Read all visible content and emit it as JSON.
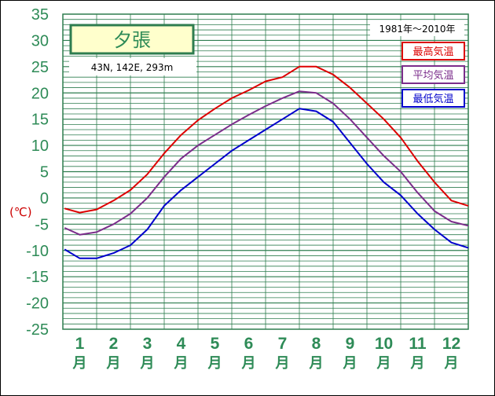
{
  "chart_data": {
    "type": "line",
    "title": "夕張",
    "location": "43N, 142E, 293m",
    "period": "1981年～2010年",
    "ylabel": "(℃)",
    "ylim": [
      -25,
      35
    ],
    "yticks": [
      "35",
      "30",
      "25",
      "20",
      "15",
      "10",
      "5",
      "0",
      "-5",
      "-10",
      "-15",
      "-20",
      "-25"
    ],
    "xlim": [
      0.5,
      12.5
    ],
    "months": [
      {
        "num": "1",
        "unit": "月"
      },
      {
        "num": "2",
        "unit": "月"
      },
      {
        "num": "3",
        "unit": "月"
      },
      {
        "num": "4",
        "unit": "月"
      },
      {
        "num": "5",
        "unit": "月"
      },
      {
        "num": "6",
        "unit": "月"
      },
      {
        "num": "7",
        "unit": "月"
      },
      {
        "num": "8",
        "unit": "月"
      },
      {
        "num": "9",
        "unit": "月"
      },
      {
        "num": "10",
        "unit": "月"
      },
      {
        "num": "11",
        "unit": "月"
      },
      {
        "num": "12",
        "unit": "月"
      }
    ],
    "grid": true,
    "legend_position": "top-right",
    "series": [
      {
        "name": "最高気温",
        "color": "#dd0000",
        "x": [
          0.55,
          1.0,
          1.5,
          2.0,
          2.5,
          3.0,
          3.5,
          4.0,
          4.5,
          5.0,
          5.5,
          6.0,
          6.5,
          7.0,
          7.5,
          8.0,
          8.5,
          9.0,
          9.5,
          10.0,
          10.5,
          11.0,
          11.5,
          12.0,
          12.5
        ],
        "values": [
          -2.0,
          -2.8,
          -2.2,
          -0.5,
          1.5,
          4.5,
          8.5,
          12.0,
          14.8,
          17.0,
          19.0,
          20.5,
          22.2,
          23.0,
          25.0,
          25.0,
          23.5,
          21.0,
          18.0,
          15.0,
          11.5,
          7.0,
          3.0,
          -0.5,
          -1.5
        ]
      },
      {
        "name": "平均気温",
        "color": "#7b2d8b",
        "x": [
          0.55,
          1.0,
          1.5,
          2.0,
          2.5,
          3.0,
          3.5,
          4.0,
          4.5,
          5.0,
          5.5,
          6.0,
          6.5,
          7.0,
          7.5,
          8.0,
          8.5,
          9.0,
          9.5,
          10.0,
          10.5,
          11.0,
          11.5,
          12.0,
          12.5
        ],
        "values": [
          -5.7,
          -7.0,
          -6.5,
          -5.0,
          -3.0,
          0.0,
          4.0,
          7.5,
          10.0,
          12.0,
          14.0,
          15.8,
          17.5,
          19.0,
          20.3,
          20.0,
          18.0,
          15.0,
          11.5,
          8.0,
          5.0,
          1.0,
          -2.5,
          -4.5,
          -5.3
        ]
      },
      {
        "name": "最低気温",
        "color": "#0000cc",
        "x": [
          0.55,
          1.0,
          1.5,
          2.0,
          2.5,
          3.0,
          3.5,
          4.0,
          4.5,
          5.0,
          5.5,
          6.0,
          6.5,
          7.0,
          7.5,
          8.0,
          8.5,
          9.0,
          9.5,
          10.0,
          10.5,
          11.0,
          11.5,
          12.0,
          12.5
        ],
        "values": [
          -9.8,
          -11.5,
          -11.5,
          -10.5,
          -9.0,
          -6.0,
          -1.5,
          1.5,
          4.0,
          6.5,
          9.0,
          11.0,
          13.0,
          15.0,
          17.0,
          16.5,
          14.5,
          10.5,
          6.5,
          3.0,
          0.5,
          -3.0,
          -6.0,
          -8.5,
          -9.5
        ]
      }
    ]
  }
}
